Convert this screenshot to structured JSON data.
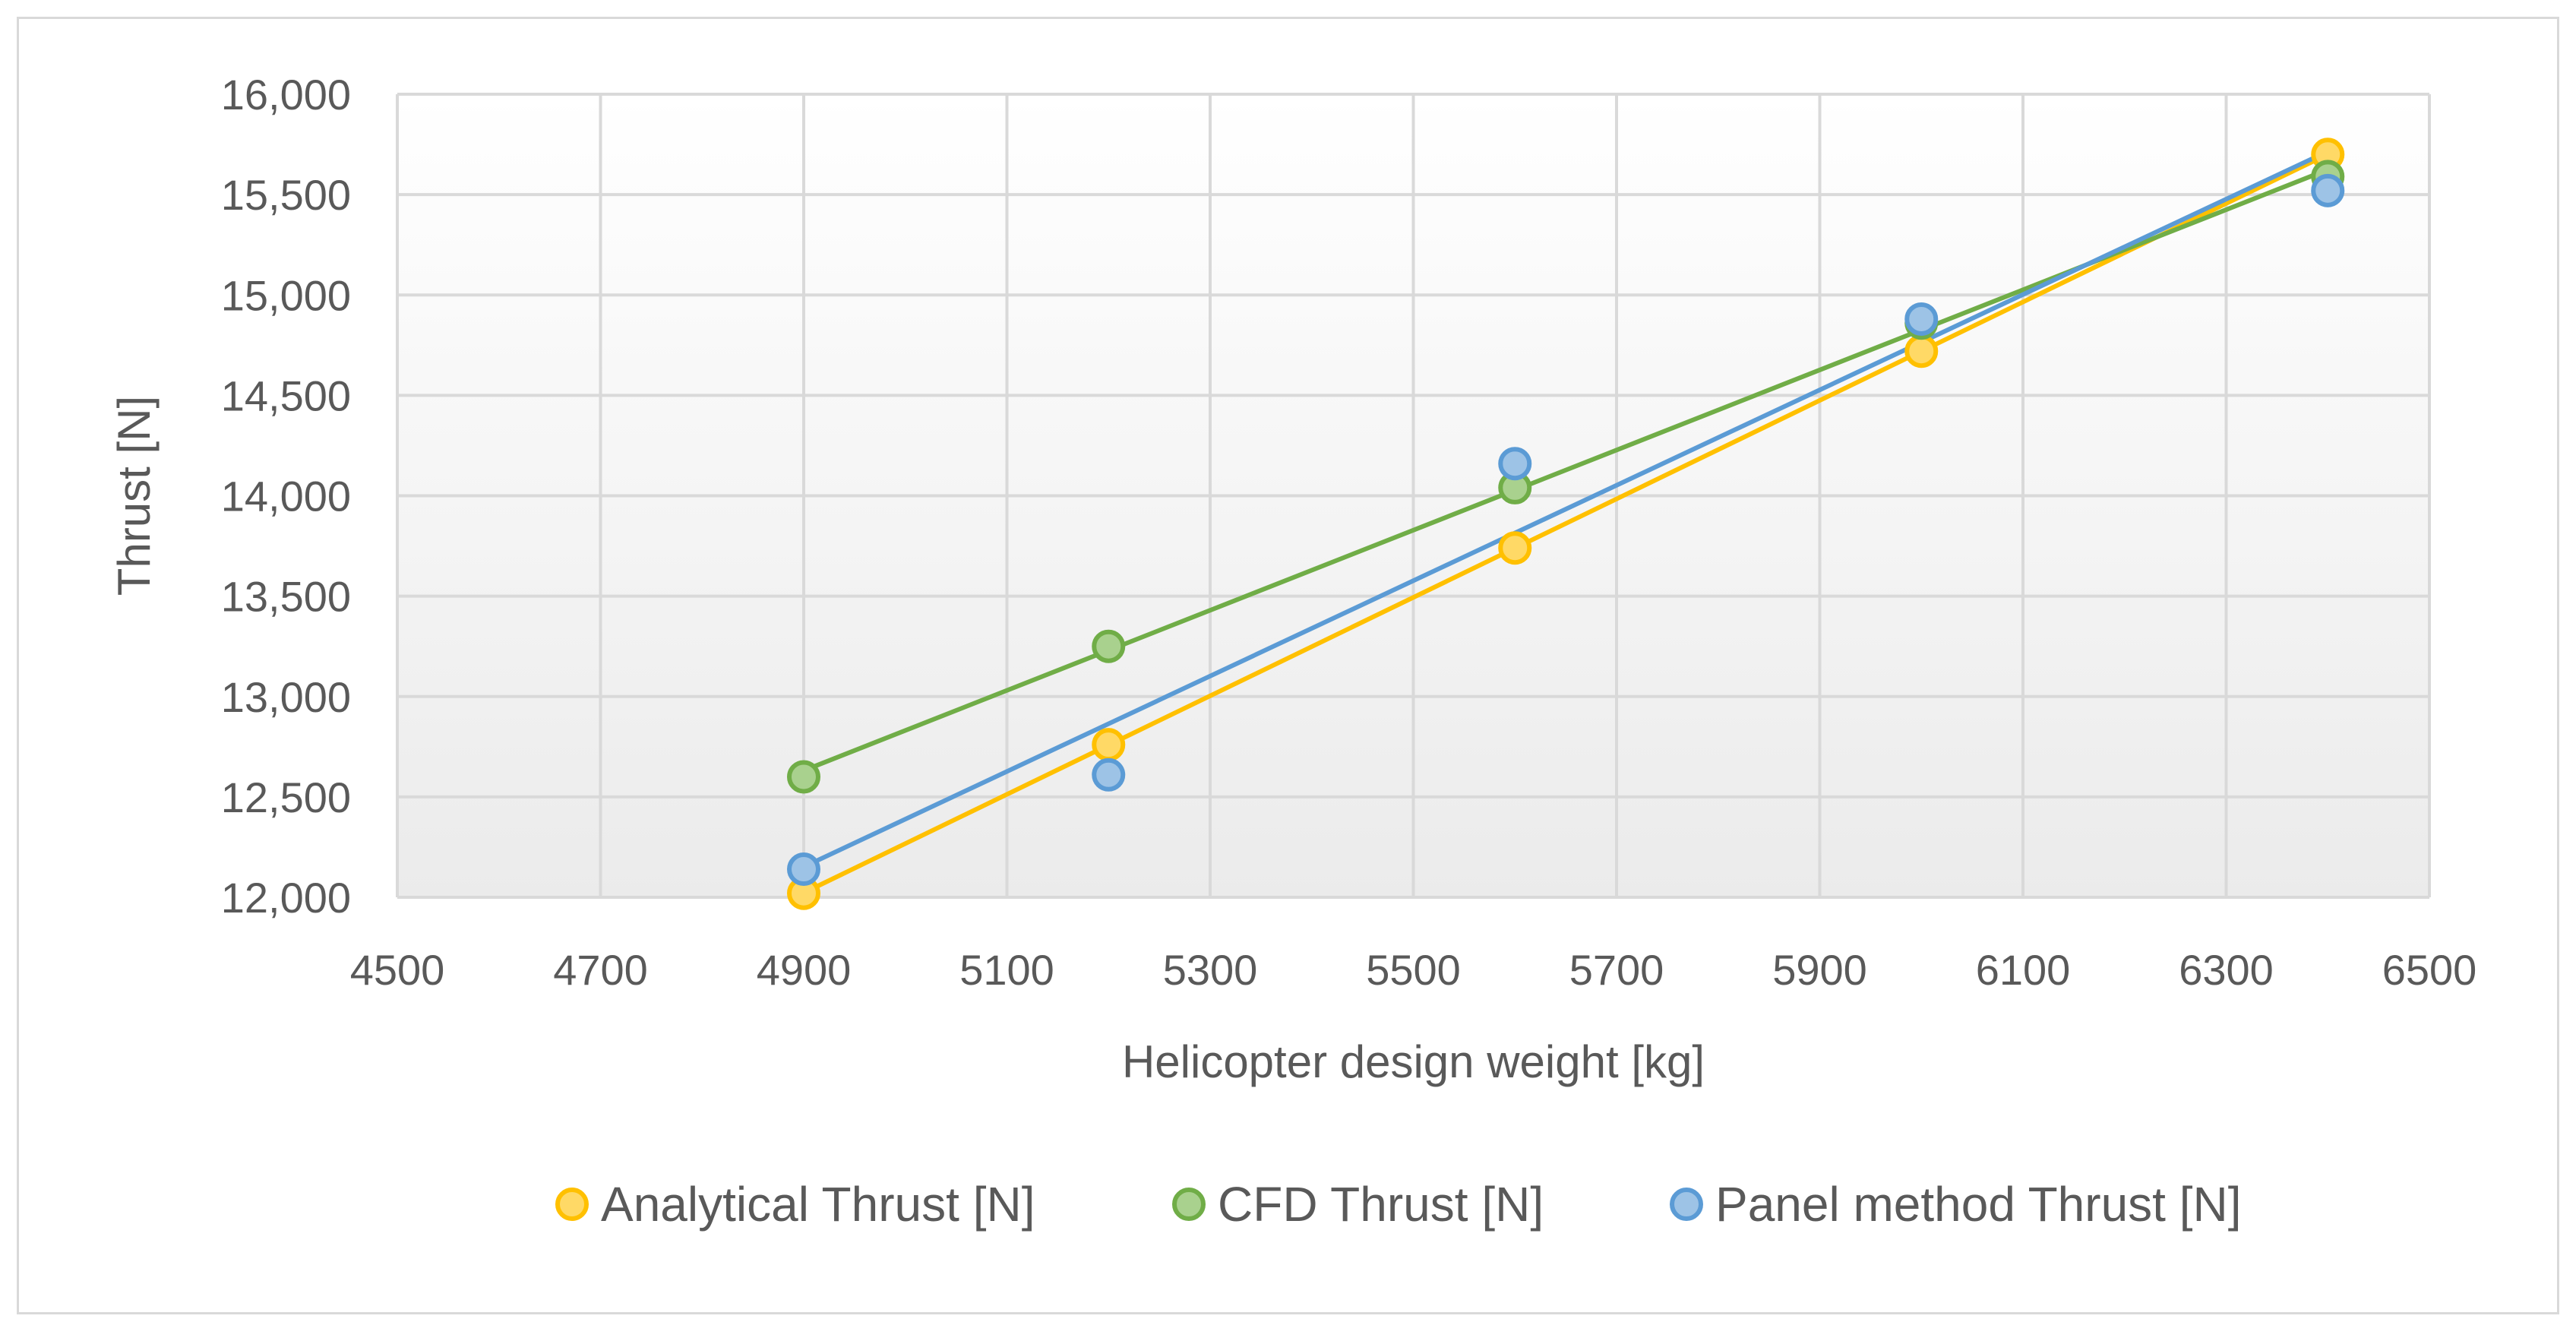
{
  "chart_data": {
    "type": "scatter",
    "title": "",
    "xlabel": "Helicopter design weight [kg]",
    "ylabel": "Thrust [N]",
    "xlim": [
      4500,
      6500
    ],
    "ylim": [
      12000,
      16000
    ],
    "x_ticks": [
      4500,
      4700,
      4900,
      5100,
      5300,
      5500,
      5700,
      5900,
      6100,
      6300,
      6500
    ],
    "y_ticks": [
      12000,
      12500,
      13000,
      13500,
      14000,
      14500,
      15000,
      15500,
      16000
    ],
    "x_tick_labels": [
      "4500",
      "4700",
      "4900",
      "5100",
      "5300",
      "5500",
      "5700",
      "5900",
      "6100",
      "6300",
      "6500"
    ],
    "y_tick_labels": [
      "12,000",
      "12,500",
      "13,000",
      "13,500",
      "14,000",
      "14,500",
      "15,000",
      "15,500",
      "16,000"
    ],
    "grid": true,
    "legend_position": "bottom",
    "trendlines": "linear",
    "series": [
      {
        "name": "Analytical Thrust [N]",
        "color": "#FFC000",
        "fill": "#FFD966",
        "x": [
          4900,
          5200,
          5600,
          6000,
          6400
        ],
        "y": [
          12020,
          12760,
          13740,
          14720,
          15700
        ]
      },
      {
        "name": "CFD Thrust [N]",
        "color": "#70AD47",
        "fill": "#A9D18E",
        "x": [
          4900,
          5200,
          5600,
          6000,
          6400
        ],
        "y": [
          12600,
          13250,
          14040,
          14860,
          15590
        ]
      },
      {
        "name": "Panel method Thrust [N]",
        "color": "#5B9BD5",
        "fill": "#9DC3E6",
        "x": [
          4900,
          5200,
          5600,
          6000,
          6400
        ],
        "y": [
          12140,
          12610,
          14160,
          14880,
          15520
        ]
      }
    ]
  }
}
